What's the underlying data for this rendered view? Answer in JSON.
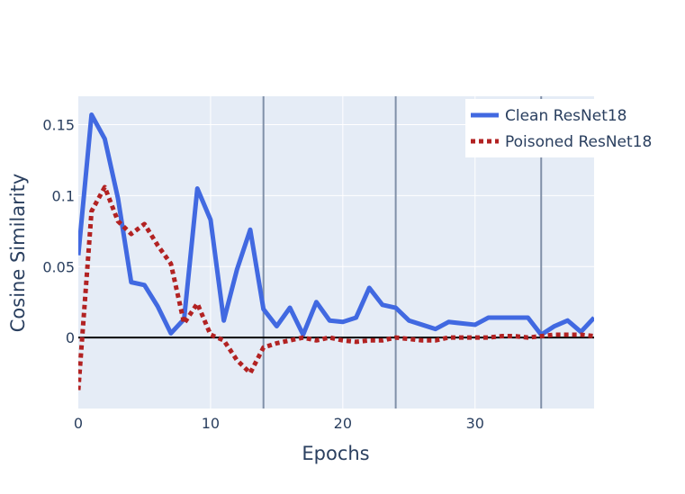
{
  "chart_data": {
    "type": "line",
    "title": "",
    "xlabel": "Epochs",
    "ylabel": "Cosine Similarity",
    "xlim": [
      0,
      39
    ],
    "ylim": [
      -0.05,
      0.17
    ],
    "x_ticks": [
      0,
      10,
      20,
      30
    ],
    "y_ticks": [
      0,
      0.05,
      0.1,
      0.15
    ],
    "y_tick_labels": [
      "0",
      "0.05",
      "0.1",
      "0.15"
    ],
    "x": [
      0,
      1,
      2,
      3,
      4,
      5,
      6,
      7,
      8,
      9,
      10,
      11,
      12,
      13,
      14,
      15,
      16,
      17,
      18,
      19,
      20,
      21,
      22,
      23,
      24,
      25,
      26,
      27,
      28,
      29,
      30,
      31,
      32,
      33,
      34,
      35,
      36,
      37,
      38,
      39
    ],
    "vertical_lines": [
      14,
      24,
      35
    ],
    "zero_line": true,
    "grid": true,
    "legend_position": "top-right",
    "series": [
      {
        "name": "Clean ResNet18",
        "style": "solid",
        "color": "#4169e1",
        "values": [
          0.058,
          0.157,
          0.14,
          0.098,
          0.039,
          0.037,
          0.022,
          0.003,
          0.013,
          0.105,
          0.083,
          0.012,
          0.048,
          0.076,
          0.02,
          0.008,
          0.021,
          0.002,
          0.025,
          0.012,
          0.011,
          0.014,
          0.035,
          0.023,
          0.021,
          0.012,
          0.009,
          0.006,
          0.011,
          0.01,
          0.009,
          0.014,
          0.014,
          0.014,
          0.014,
          0.002,
          0.008,
          0.012,
          0.004,
          0.014
        ]
      },
      {
        "name": "Poisoned ResNet18",
        "style": "dotted",
        "color": "#b22222",
        "values": [
          -0.037,
          0.089,
          0.106,
          0.082,
          0.073,
          0.08,
          0.065,
          0.052,
          0.01,
          0.024,
          0.002,
          -0.002,
          -0.016,
          -0.025,
          -0.007,
          -0.004,
          -0.002,
          0.0,
          -0.002,
          0.0,
          -0.002,
          -0.003,
          -0.002,
          -0.002,
          0.0,
          -0.001,
          -0.002,
          -0.002,
          0.0,
          0.0,
          0.0,
          0.0,
          0.001,
          0.001,
          0.0,
          0.001,
          0.002,
          0.002,
          0.002,
          0.001
        ]
      }
    ]
  },
  "colors": {
    "plot_background": "#e5ecf6",
    "grid": "#ffffff",
    "vline": "#8090a8",
    "zero_line": "#000000",
    "axis_text": "#2a3f5f"
  }
}
